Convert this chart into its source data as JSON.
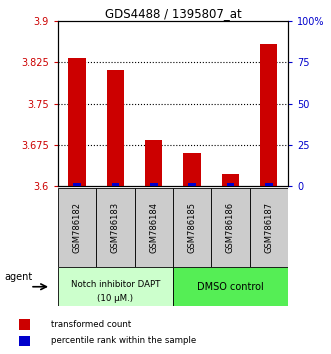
{
  "title": "GDS4488 / 1395807_at",
  "samples": [
    "GSM786182",
    "GSM786183",
    "GSM786184",
    "GSM786185",
    "GSM786186",
    "GSM786187"
  ],
  "red_values": [
    3.833,
    3.812,
    3.683,
    3.66,
    3.622,
    3.858
  ],
  "blue_pct": [
    2.0,
    2.0,
    2.0,
    2.0,
    2.0,
    2.0
  ],
  "ylim_left": [
    3.6,
    3.9
  ],
  "ylim_right": [
    0,
    100
  ],
  "yticks_left": [
    3.6,
    3.675,
    3.75,
    3.825,
    3.9
  ],
  "yticks_right": [
    0,
    25,
    50,
    75,
    100
  ],
  "ytick_labels_left": [
    "3.6",
    "3.675",
    "3.75",
    "3.825",
    "3.9"
  ],
  "ytick_labels_right": [
    "0",
    "25",
    "50",
    "75",
    "100%"
  ],
  "group1_label_line1": "Notch inhibitor DAPT",
  "group1_label_line2": "(10 μM.)",
  "group2_label": "DMSO control",
  "group1_color": "#ccffcc",
  "group2_color": "#55ee55",
  "agent_label": "agent",
  "legend_red": "transformed count",
  "legend_blue": "percentile rank within the sample",
  "red_color": "#cc0000",
  "blue_color": "#0000cc",
  "tick_box_color": "#cccccc",
  "background_color": "#ffffff"
}
